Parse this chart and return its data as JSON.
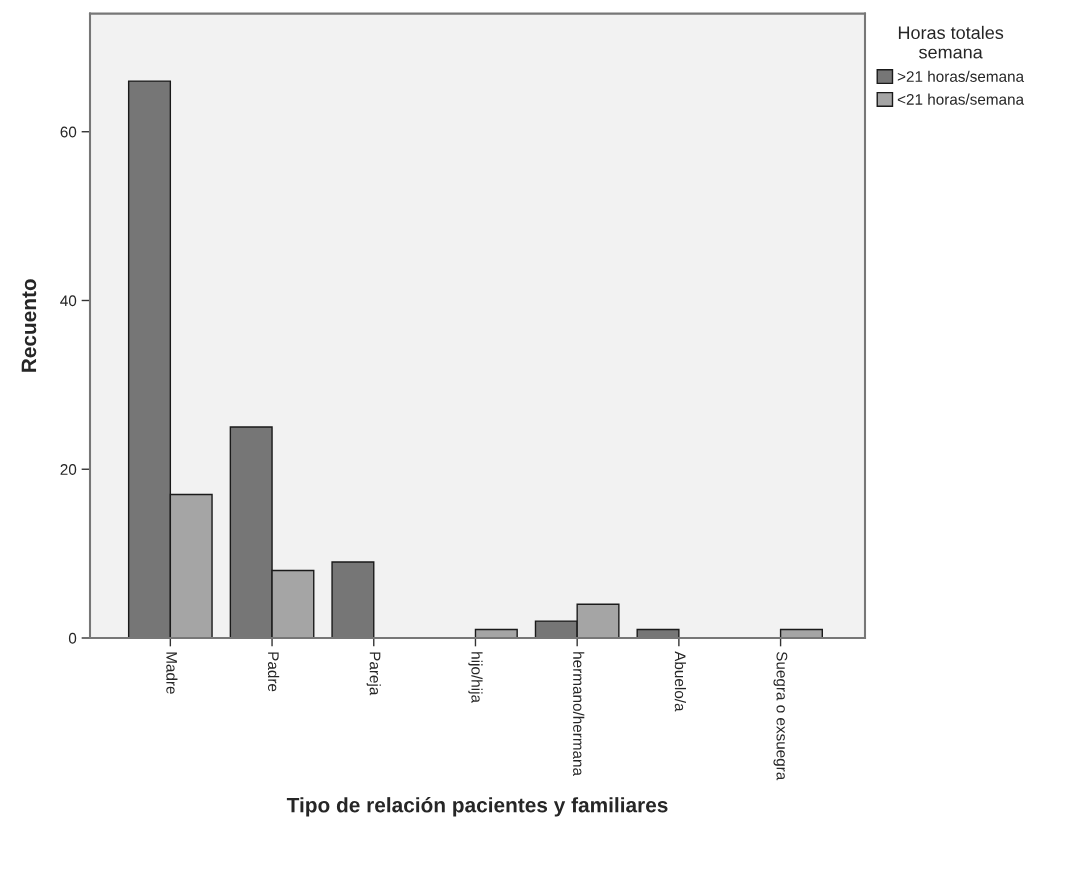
{
  "chart_data": {
    "type": "bar",
    "xlabel": "Tipo de relación pacientes y familiares",
    "ylabel": "Recuento",
    "legend_title": "Horas totales\nsemana",
    "categories": [
      "Madre",
      "Padre",
      "Pareja",
      "hijo/hija",
      "hermano/hermana",
      "Abuelo/a",
      "Suegra o exsuegra"
    ],
    "series": [
      {
        "name": ">21 horas/semana",
        "color": "#767676",
        "values": [
          66,
          25,
          9,
          null,
          2,
          1,
          null
        ]
      },
      {
        "name": "<21 horas/semana",
        "color": "#a5a5a5",
        "values": [
          17,
          8,
          null,
          1,
          4,
          null,
          1
        ]
      }
    ],
    "ylim": [
      0,
      74
    ],
    "yticks": [
      0,
      20,
      40,
      60
    ],
    "grid": false,
    "legend": "top right"
  }
}
